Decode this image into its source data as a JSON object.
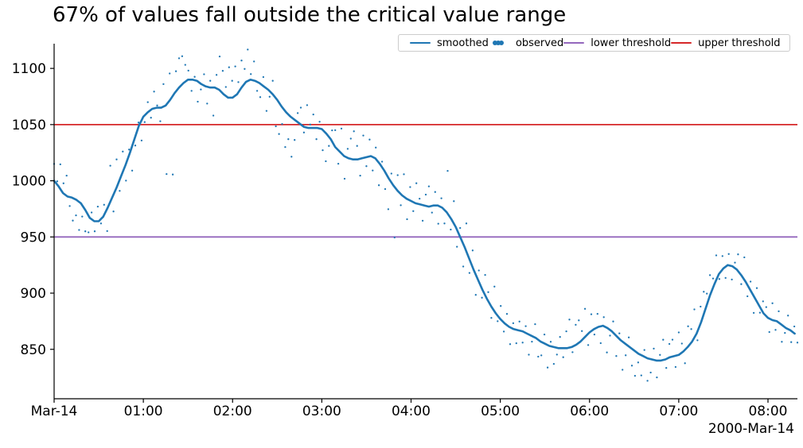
{
  "chart_data": {
    "type": "line",
    "title": "67% of values fall outside the critical value range",
    "grid": false,
    "background": "#ffffff",
    "xlim": [
      0,
      8.33
    ],
    "ylim": [
      806,
      1122
    ],
    "x_axis": {
      "unit": "hours since midnight",
      "tick_positions_hours": [
        0,
        1,
        2,
        3,
        4,
        5,
        6,
        7,
        8
      ],
      "tick_labels": [
        "Mar-14",
        "01:00",
        "02:00",
        "03:00",
        "04:00",
        "05:00",
        "06:00",
        "07:00",
        "08:00"
      ],
      "date_label": "2000-Mar-14"
    },
    "y_axis": {
      "tick_values": [
        850,
        900,
        950,
        1000,
        1050,
        1100
      ]
    },
    "legend_entries": [
      {
        "label": "smoothed",
        "marker": "line",
        "color": "#1f77b4"
      },
      {
        "label": "observed",
        "marker": "dots",
        "color": "#1f77b4"
      },
      {
        "label": "lower threshold",
        "marker": "line",
        "color": "#9467bd"
      },
      {
        "label": "upper threshold",
        "marker": "line",
        "color": "#d62728"
      }
    ],
    "thresholds": {
      "lower": {
        "label": "lower threshold",
        "value": 950,
        "color": "#9467bd"
      },
      "upper": {
        "label": "upper threshold",
        "value": 1050,
        "color": "#d62728"
      }
    },
    "series": [
      {
        "name": "smoothed",
        "type": "line",
        "color": "#1f77b4",
        "t0": 0,
        "dt": 0.05,
        "values": [
          1000,
          995,
          989,
          986,
          985,
          983,
          980,
          974,
          967,
          964,
          964,
          968,
          976,
          985,
          994,
          1004,
          1014,
          1025,
          1037,
          1049,
          1057,
          1061,
          1064,
          1065,
          1065,
          1067,
          1072,
          1078,
          1083,
          1087,
          1090,
          1090,
          1089,
          1086,
          1084,
          1083,
          1083,
          1081,
          1077,
          1074,
          1074,
          1077,
          1083,
          1088,
          1090,
          1089,
          1087,
          1084,
          1081,
          1077,
          1072,
          1066,
          1061,
          1057,
          1054,
          1051,
          1048,
          1047,
          1047,
          1047,
          1046,
          1042,
          1037,
          1030,
          1026,
          1022,
          1020,
          1019,
          1019,
          1020,
          1021,
          1022,
          1020,
          1015,
          1009,
          1002,
          996,
          991,
          987,
          984,
          982,
          980,
          979,
          978,
          977,
          978,
          978,
          976,
          972,
          966,
          959,
          950,
          941,
          931,
          921,
          912,
          903,
          895,
          888,
          882,
          877,
          873,
          870,
          868,
          867,
          866,
          864,
          862,
          860,
          857,
          855,
          853,
          852,
          851,
          851,
          851,
          852,
          854,
          857,
          861,
          865,
          868,
          870,
          871,
          869,
          866,
          862,
          858,
          855,
          852,
          849,
          846,
          844,
          842,
          841,
          840,
          840,
          841,
          843,
          844,
          845,
          848,
          852,
          857,
          864,
          874,
          886,
          898,
          908,
          917,
          922,
          925,
          924,
          921,
          916,
          910,
          903,
          896,
          889,
          882,
          878,
          876,
          875,
          872,
          869,
          867,
          864
        ]
      },
      {
        "name": "observed",
        "type": "scatter",
        "color": "#1f77b4",
        "t0": 0,
        "dt": 0.035,
        "offsets_from_smoothed": [
          15,
          3,
          22,
          9,
          18,
          -8,
          -20,
          -14,
          -25,
          -10,
          -19,
          -15,
          6,
          -9,
          13,
          -4,
          9,
          -20,
          32,
          -15,
          25,
          -10,
          18,
          -15,
          5,
          -22,
          -8,
          4,
          -18,
          -6,
          9,
          -7,
          15,
          2,
          -12,
          20,
          -62,
          24,
          -70,
          18,
          26,
          25,
          15,
          8,
          -10,
          3,
          -18,
          -5,
          10,
          -15,
          6,
          -25,
          12,
          30,
          20,
          8,
          27,
          15,
          26,
          9,
          24,
          13,
          28,
          5,
          17,
          -8,
          -12,
          8,
          -20,
          -5,
          12,
          -25,
          -28,
          -15,
          -32,
          -22,
          -35,
          -18,
          8,
          15,
          -5,
          20,
          3,
          12,
          -10,
          6,
          -18,
          -25,
          -8,
          10,
          15,
          -12,
          22,
          -20,
          8,
          18,
          25,
          12,
          -15,
          20,
          -8,
          15,
          -12,
          10,
          -20,
          5,
          -15,
          -28,
          8,
          -45,
          14,
          -10,
          20,
          -18,
          12,
          -8,
          18,
          5,
          -14,
          10,
          18,
          -6,
          12,
          -16,
          8,
          -12,
          38,
          -10,
          20,
          -15,
          8,
          -20,
          25,
          -12,
          15,
          -18,
          10,
          -8,
          18,
          8,
          -10,
          22,
          -5,
          12,
          -8,
          10,
          -15,
          5,
          -12,
          8,
          -10,
          6,
          -18,
          -5,
          12,
          -15,
          -12,
          8,
          -20,
          4,
          -15,
          -6,
          10,
          -8,
          15,
          25,
          -5,
          18,
          20,
          8,
          25,
          -10,
          15,
          -5,
          12,
          -15,
          8,
          -22,
          -5,
          10,
          -18,
          5,
          -25,
          -10,
          8,
          -15,
          -22,
          -8,
          -18,
          6,
          -20,
          -12,
          10,
          -15,
          5,
          18,
          -8,
          12,
          15,
          -10,
          20,
          8,
          -12,
          18,
          12,
          25,
          -8,
          15,
          20,
          10,
          18,
          8,
          22,
          -5,
          12,
          -10,
          10,
          -12,
          5,
          15,
          -8,
          20,
          -10,
          8,
          -15,
          12,
          -5,
          10,
          8,
          -12,
          15,
          -8,
          10,
          -15,
          -5,
          12,
          -10,
          6,
          -8
        ]
      }
    ],
    "axis_color": "#000000",
    "tick_label_color": "#000000"
  }
}
